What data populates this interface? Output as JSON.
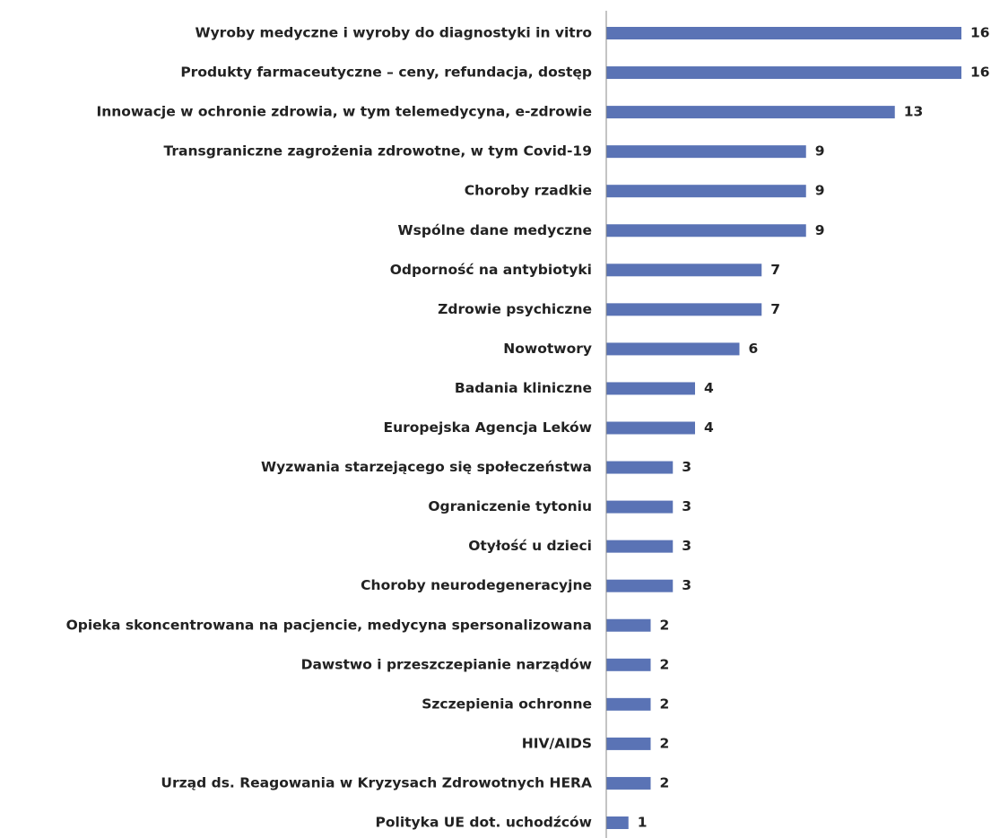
{
  "chart_data": {
    "type": "bar",
    "orientation": "horizontal",
    "categories": [
      "Wyroby medyczne i wyroby do diagnostyki in vitro",
      "Produkty farmaceutyczne – ceny, refundacja, dostęp",
      "Innowacje w ochronie zdrowia, w tym telemedycyna, e-zdrowie",
      "Transgraniczne zagrożenia zdrowotne, w tym Covid-19",
      "Choroby rzadkie",
      "Wspólne dane medyczne",
      "Odporność na antybiotyki",
      "Zdrowie psychiczne",
      "Nowotwory",
      "Badania kliniczne",
      "Europejska Agencja Leków",
      "Wyzwania starzejącego się społeczeństwa",
      "Ograniczenie tytoniu",
      "Otyłość u dzieci",
      "Choroby neurodegeneracyjne",
      "Opieka skoncentrowana na pacjencie, medycyna spersonalizowana",
      "Dawstwo i przeszczepianie narządów",
      "Szczepienia ochronne",
      "HIV/AIDS",
      "Urząd ds. Reagowania w Kryzysach Zdrowotnych HERA",
      "Polityka UE dot. uchodźców"
    ],
    "values": [
      16,
      16,
      13,
      9,
      9,
      9,
      7,
      7,
      6,
      4,
      4,
      3,
      3,
      3,
      3,
      2,
      2,
      2,
      2,
      2,
      1
    ],
    "color": "#5a73b5"
  }
}
